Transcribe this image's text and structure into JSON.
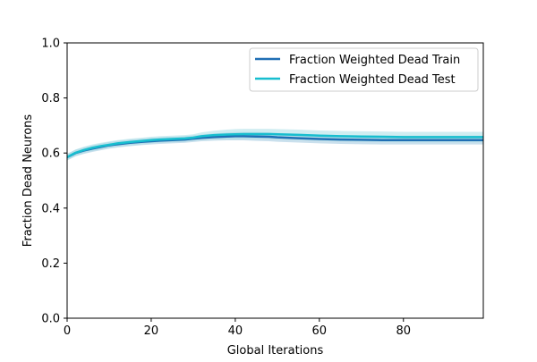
{
  "chart_data": {
    "type": "line",
    "xlabel": "Global Iterations",
    "ylabel": "Fraction Dead Neurons",
    "xlim": [
      0,
      99
    ],
    "ylim": [
      0,
      1.0
    ],
    "x_ticks": [
      0,
      20,
      40,
      60,
      80
    ],
    "x_tick_labels": [
      "0",
      "20",
      "40",
      "60",
      "80"
    ],
    "y_ticks": [
      0,
      0.2,
      0.4,
      0.6,
      0.8,
      1.0
    ],
    "y_tick_labels": [
      "0.0",
      "0.2",
      "0.4",
      "0.6",
      "0.8",
      "1.0"
    ],
    "grid": false,
    "legend_position": "top-right",
    "x": [
      0,
      2,
      4,
      6,
      8,
      10,
      12,
      15,
      18,
      20,
      22,
      25,
      28,
      30,
      32,
      35,
      38,
      40,
      42,
      45,
      48,
      50,
      55,
      60,
      65,
      70,
      75,
      80,
      85,
      90,
      95,
      99
    ],
    "series": [
      {
        "name": "Fraction Weighted Dead Train",
        "color": "#1f6fb4",
        "band_color": "#9fc7de",
        "values": [
          0.585,
          0.6,
          0.609,
          0.616,
          0.622,
          0.628,
          0.632,
          0.637,
          0.641,
          0.643,
          0.645,
          0.647,
          0.649,
          0.652,
          0.655,
          0.658,
          0.66,
          0.661,
          0.661,
          0.66,
          0.659,
          0.657,
          0.654,
          0.651,
          0.649,
          0.648,
          0.647,
          0.647,
          0.647,
          0.647,
          0.647,
          0.647
        ],
        "band": [
          0.012,
          0.012,
          0.012,
          0.012,
          0.012,
          0.012,
          0.012,
          0.012,
          0.012,
          0.012,
          0.012,
          0.012,
          0.012,
          0.012,
          0.012,
          0.013,
          0.014,
          0.015,
          0.015,
          0.016,
          0.016,
          0.016,
          0.016,
          0.016,
          0.016,
          0.016,
          0.016,
          0.016,
          0.016,
          0.016,
          0.016,
          0.016
        ]
      },
      {
        "name": "Fraction Weighted Dead Test",
        "color": "#17becf",
        "band_color": "#aadfe6",
        "values": [
          0.585,
          0.601,
          0.611,
          0.619,
          0.625,
          0.63,
          0.635,
          0.64,
          0.644,
          0.647,
          0.649,
          0.651,
          0.653,
          0.656,
          0.661,
          0.665,
          0.667,
          0.668,
          0.669,
          0.669,
          0.669,
          0.668,
          0.666,
          0.663,
          0.661,
          0.66,
          0.659,
          0.658,
          0.658,
          0.658,
          0.658,
          0.658
        ],
        "band": [
          0.012,
          0.012,
          0.012,
          0.012,
          0.012,
          0.012,
          0.012,
          0.012,
          0.012,
          0.012,
          0.012,
          0.012,
          0.012,
          0.012,
          0.014,
          0.016,
          0.018,
          0.019,
          0.019,
          0.019,
          0.019,
          0.019,
          0.019,
          0.019,
          0.019,
          0.019,
          0.019,
          0.019,
          0.019,
          0.019,
          0.019,
          0.019
        ]
      }
    ]
  }
}
